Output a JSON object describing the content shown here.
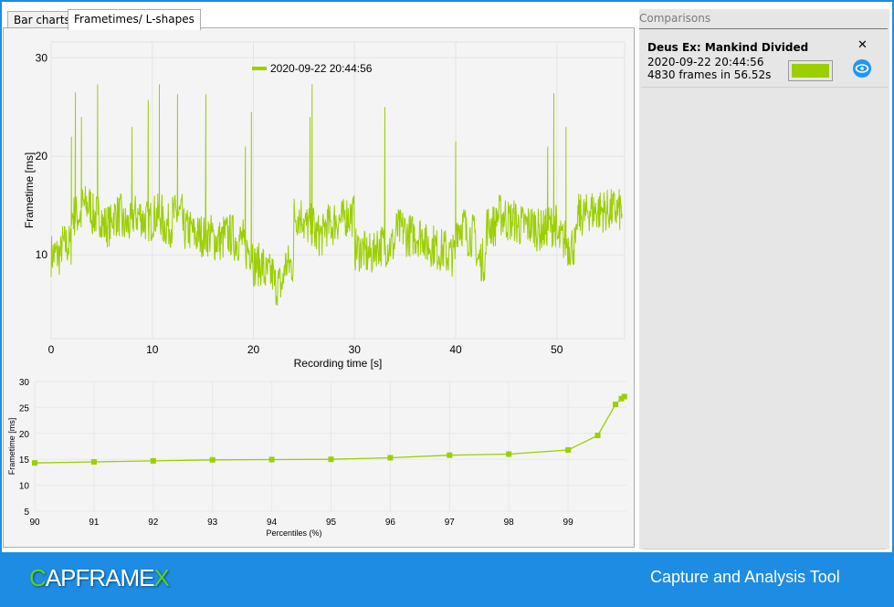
{
  "tabs": [
    {
      "label": "Bar charts",
      "active": false
    },
    {
      "label": "Frametimes/ L-shapes",
      "active": true
    }
  ],
  "comparisons": {
    "header": "Comparisons",
    "items": [
      {
        "game": "Deus Ex: Mankind Divided",
        "date": "2020-09-22 20:44:56",
        "frames": "4830 frames in 56.52s",
        "color": "#9bcf00",
        "close_icon": "close-icon",
        "visibility_icon": "eye-icon"
      }
    ]
  },
  "footer": {
    "logo": "CAPFRAMEX",
    "logo_first": "C",
    "logo_mid": "APFRAME",
    "logo_last": "X",
    "tagline": "Capture and Analysis Tool"
  },
  "chart_data": [
    {
      "type": "line",
      "title": "",
      "legend": [
        "2020-09-22 20:44:56"
      ],
      "legend_placement": "top-center",
      "xlabel": "Recording time [s]",
      "ylabel": "Frametime [ms]",
      "xlim": [
        0,
        56.7
      ],
      "ylim": [
        1.5,
        31.6
      ],
      "xticks": [
        0,
        10,
        20,
        30,
        40,
        50
      ],
      "yticks": [
        10,
        20,
        30
      ],
      "grid": true,
      "color": "#9bcf00",
      "baseline_per_second": [
        10,
        11,
        14,
        15,
        14,
        13,
        14,
        13,
        14,
        13.5,
        14,
        13,
        14,
        12.5,
        12,
        12,
        11.5,
        12,
        11.5,
        10.5,
        9,
        8,
        7,
        9,
        14,
        13,
        12,
        13,
        13.5,
        14,
        10.5,
        10,
        11,
        11,
        12.5,
        12,
        12,
        11,
        10.5,
        10,
        13,
        12,
        9.5,
        13,
        14,
        13.5,
        13,
        13,
        12.5,
        13,
        11.5,
        11,
        14,
        14.5,
        14.5,
        14.5,
        14.5
      ],
      "spikes": [
        [
          2.0,
          22
        ],
        [
          2.4,
          26.5
        ],
        [
          3.0,
          24
        ],
        [
          4.6,
          27.3
        ],
        [
          8.0,
          23
        ],
        [
          9.6,
          25.7
        ],
        [
          10.7,
          27.3
        ],
        [
          12.5,
          26.3
        ],
        [
          15.3,
          26.3
        ],
        [
          19.2,
          21
        ],
        [
          19.8,
          24.5
        ],
        [
          25.6,
          24
        ],
        [
          25.8,
          27.3
        ],
        [
          33.0,
          25
        ],
        [
          40.0,
          21.5
        ],
        [
          49.1,
          21
        ],
        [
          49.7,
          26.4
        ],
        [
          50.9,
          23
        ]
      ]
    },
    {
      "type": "line",
      "xlabel": "Percentiles (%)",
      "ylabel": "Frametime [ms]",
      "xlim": [
        90,
        100
      ],
      "ylim": [
        5,
        30
      ],
      "xticks": [
        90,
        91,
        92,
        93,
        94,
        95,
        96,
        97,
        98,
        99
      ],
      "yticks": [
        5,
        10,
        15,
        20,
        25,
        30
      ],
      "grid": true,
      "color": "#9bcf00",
      "x": [
        90,
        91,
        92,
        93,
        94,
        95,
        96,
        97,
        98,
        99,
        99.5,
        99.8,
        99.9,
        99.95
      ],
      "y": [
        14.3,
        14.5,
        14.7,
        14.9,
        14.95,
        15.0,
        15.3,
        15.8,
        16.0,
        16.8,
        19.6,
        25.6,
        26.7,
        27.1
      ]
    }
  ]
}
